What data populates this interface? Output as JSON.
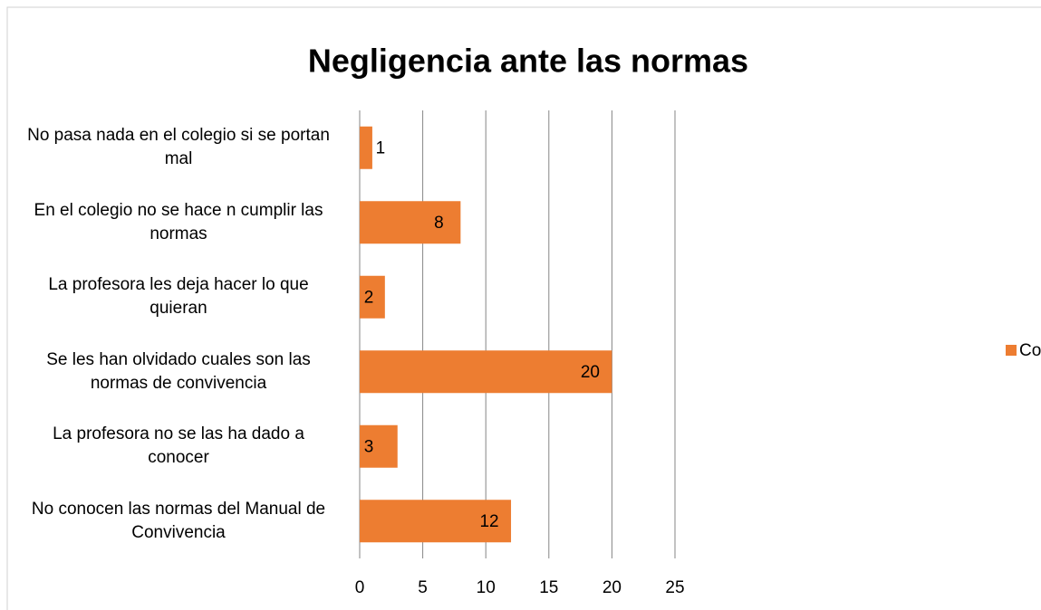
{
  "chart_data": {
    "type": "barh",
    "title": "Negligencia ante las normas",
    "categories": [
      "No pasa nada en el colegio si se portan mal",
      "En el colegio no se hace n cumplir las normas",
      "La profesora les deja hacer lo que quieran",
      "Se  les han olvidado cuales son las normas de convivencia",
      "La profesora no se las ha dado a conocer",
      "No conocen las normas del Manual de Convivencia"
    ],
    "series": [
      {
        "name": "Conocimiento de las Normas",
        "color": "#ed7d31",
        "values": [
          1,
          8,
          2,
          20,
          3,
          12
        ]
      }
    ],
    "xlim": [
      0,
      25
    ],
    "xticks": [
      0,
      5,
      10,
      15,
      20,
      25
    ],
    "grid": true,
    "legend": "right"
  }
}
